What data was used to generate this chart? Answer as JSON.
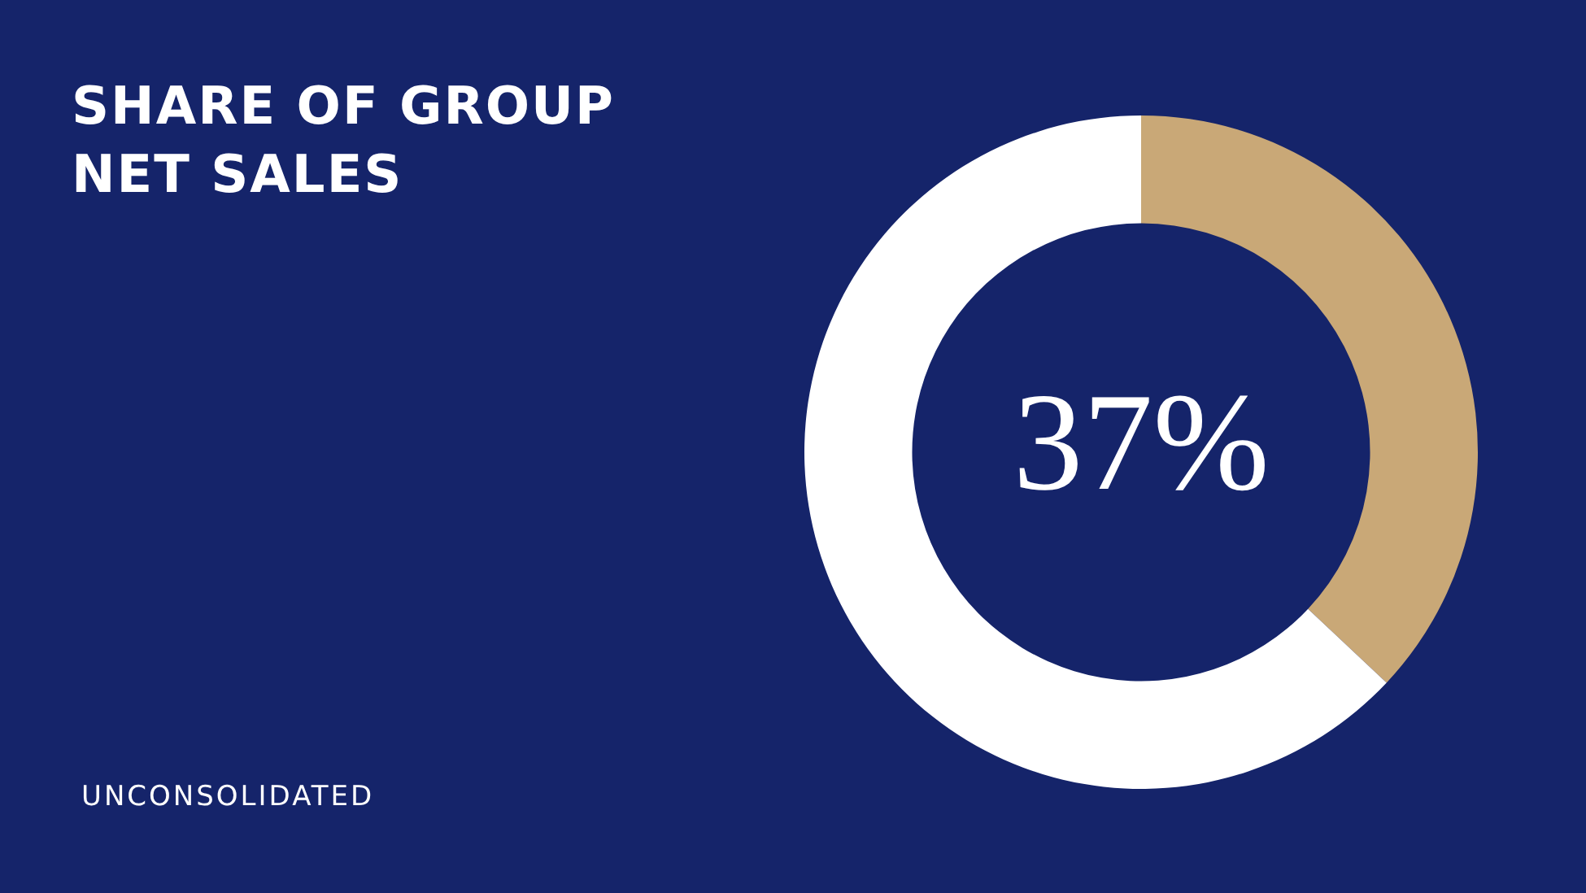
{
  "chart_data": {
    "type": "donut",
    "title": "SHARE OF GROUP NET SALES",
    "annotations": [
      "UNCONSOLIDATED"
    ],
    "categories": [
      null,
      null
    ],
    "values": [
      37,
      63
    ],
    "colors": [
      "#c9a877",
      "#ffffff"
    ],
    "value_labels": [
      "37%",
      null
    ],
    "legend": false
  }
}
